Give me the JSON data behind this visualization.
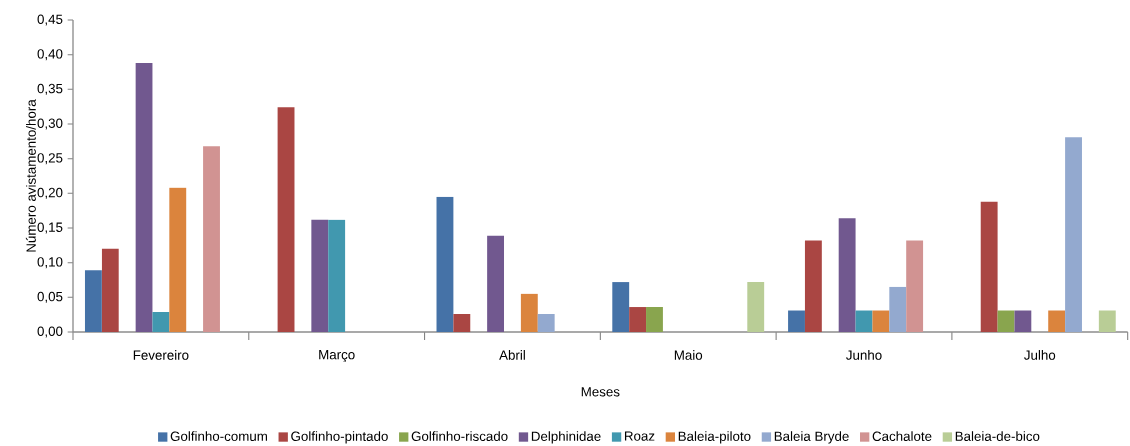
{
  "chart_data": {
    "type": "bar",
    "xlabel": "Meses",
    "ylabel": "Número avistamento/hora",
    "categories": [
      "Fevereiro",
      "Março",
      "Abril",
      "Maio",
      "Junho",
      "Julho"
    ],
    "ylim": [
      0,
      0.45
    ],
    "yticks": [
      {
        "value": 0,
        "label": "0,00"
      },
      {
        "value": 0.05,
        "label": "0,05"
      },
      {
        "value": 0.1,
        "label": "0,10"
      },
      {
        "value": 0.15,
        "label": "0,15"
      },
      {
        "value": 0.2,
        "label": "0,20"
      },
      {
        "value": 0.25,
        "label": "0,25"
      },
      {
        "value": 0.3,
        "label": "0,30"
      },
      {
        "value": 0.35,
        "label": "0,35"
      },
      {
        "value": 0.4,
        "label": "0,40"
      },
      {
        "value": 0.45,
        "label": "0,45"
      }
    ],
    "legend": "bottom",
    "series": [
      {
        "name": "Golfinho-comum",
        "color": "#4572a7",
        "values": [
          0.089,
          0,
          0.195,
          0.072,
          0.031,
          0
        ]
      },
      {
        "name": "Golfinho-pintado",
        "color": "#aa4643",
        "values": [
          0.12,
          0.324,
          0.026,
          0.036,
          0.132,
          0.188
        ]
      },
      {
        "name": "Golfinho-riscado",
        "color": "#89a54e",
        "values": [
          0,
          0,
          0,
          0.036,
          0,
          0.031
        ]
      },
      {
        "name": "Delphinidae",
        "color": "#71588f",
        "values": [
          0.388,
          0.162,
          0.139,
          0,
          0.164,
          0.031
        ]
      },
      {
        "name": "Roaz",
        "color": "#4198af",
        "values": [
          0.029,
          0.162,
          0,
          0,
          0.031,
          0
        ]
      },
      {
        "name": "Baleia-piloto",
        "color": "#db843d",
        "values": [
          0.208,
          0,
          0.055,
          0,
          0.031,
          0.031
        ]
      },
      {
        "name": "Baleia Bryde",
        "color": "#93a9cf",
        "values": [
          0,
          0,
          0.026,
          0,
          0.065,
          0.281
        ]
      },
      {
        "name": "Cachalote",
        "color": "#d19392",
        "values": [
          0.268,
          0,
          0,
          0,
          0.132,
          0
        ]
      },
      {
        "name": "Baleia-de-bico",
        "color": "#b9cd96",
        "values": [
          0,
          0,
          0,
          0.072,
          0,
          0.031
        ]
      }
    ]
  }
}
